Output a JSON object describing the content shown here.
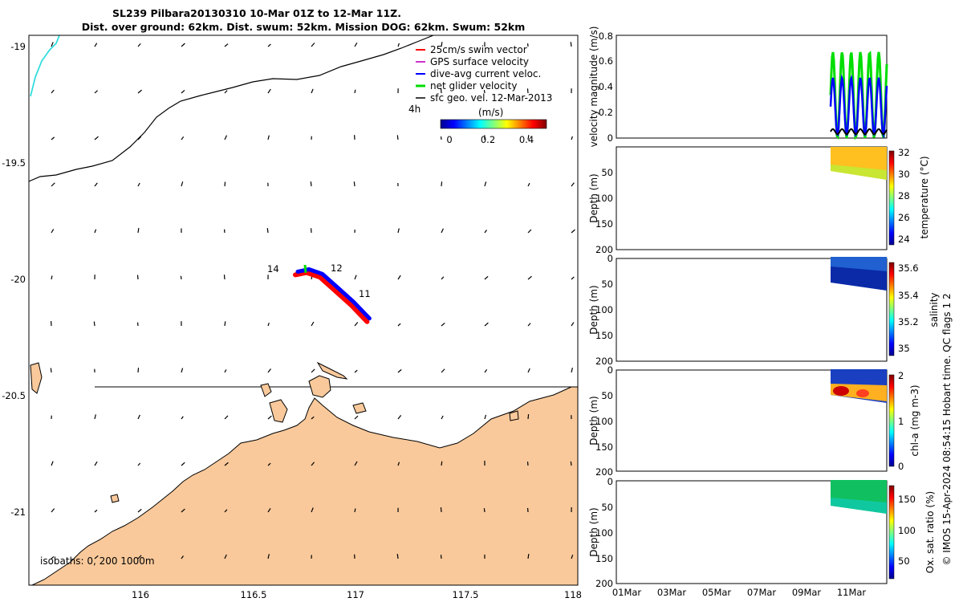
{
  "title_line1": "SL239 Pilbara20130310 10-Mar 01Z to 12-Mar 11Z.",
  "title_line2": "Dist. over ground: 62km. Dist. swum: 52km. Mission DOG: 62km. Swum: 52km",
  "map": {
    "lon_ticks": [
      "116",
      "116.5",
      "117",
      "117.5",
      "118"
    ],
    "lat_ticks": [
      "-19",
      "-19.5",
      "-20",
      "-20.5",
      "-21"
    ],
    "isobath_label": "isobaths: 0, 200  1000m",
    "legend": [
      "25cm/s swim vector",
      "GPS surface velocity",
      "dive-avg current veloc.",
      "net glider velocity",
      "sfc geo. vel. 12-Mar-2013"
    ],
    "hour_label": "4h",
    "colorbar_title": "(m/s)",
    "colorbar_ticks": [
      "0",
      "0.2",
      "0.4"
    ],
    "track_labels": [
      "14",
      "12",
      "11"
    ],
    "colors": {
      "land": "#f9c99b",
      "track_current": "#0000ff",
      "track_swim": "#ff0000",
      "net": "#00dd00",
      "coast_cyan": "#33dddd"
    }
  },
  "time_axis": {
    "ticks": [
      "01Mar",
      "03Mar",
      "05Mar",
      "07Mar",
      "09Mar",
      "11Mar"
    ]
  },
  "panels": [
    {
      "ylabel": "velocity magnitude (m/s)",
      "yticks": [
        "0",
        "0.2",
        "0.4",
        "0.6",
        "0.8"
      ]
    },
    {
      "ylabel": "Depth (m)",
      "yticks": [
        "50",
        "100",
        "150",
        "200"
      ],
      "cbar_label": "temperature (°C)",
      "cbar_ticks": [
        "32",
        "30",
        "28",
        "26",
        "24"
      ]
    },
    {
      "ylabel": "Depth (m)",
      "yticks": [
        "0",
        "50",
        "100",
        "150",
        "200"
      ],
      "cbar_label": "salinity",
      "cbar_ticks": [
        "35.6",
        "35.4",
        "35.2",
        "35"
      ]
    },
    {
      "ylabel": "Depth (m)",
      "yticks": [
        "0",
        "50",
        "100",
        "150",
        "200"
      ],
      "cbar_label": "chl-a (mg m-3)",
      "cbar_ticks": [
        "2",
        "1",
        "0"
      ]
    },
    {
      "ylabel": "Depth (m)",
      "yticks": [
        "0",
        "50",
        "100",
        "150",
        "200"
      ],
      "cbar_label": "Ox. sat. ratio (%)",
      "cbar_ticks": [
        "150",
        "100",
        "50"
      ]
    }
  ],
  "side_credit": "© IMOS 15-Apr-2024 08:54:15 Hobart time. QC flags 1  2",
  "chart_data": [
    {
      "type": "scatter",
      "title": "SL239 Pilbara20130310 10-Mar 01Z to 12-Mar 11Z.",
      "xlim": [
        115.55,
        118
      ],
      "ylim": [
        -21.3,
        -18.95
      ],
      "track_lon_lat": [
        [
          116.75,
          -19.96
        ],
        [
          116.8,
          -19.95
        ],
        [
          116.86,
          -19.97
        ],
        [
          116.93,
          -20.03
        ],
        [
          117.0,
          -20.09
        ],
        [
          117.07,
          -20.16
        ]
      ]
    },
    {
      "type": "line",
      "ylabel": "velocity magnitude (m/s)",
      "ylim": [
        0,
        0.8
      ],
      "x": [
        "01Mar",
        "11Mar"
      ],
      "series_names": [
        "net glider velocity",
        "dive-avg current veloc.",
        "sfc geo. vel."
      ],
      "green_peak": 0.67,
      "blue_peak": 0.45,
      "black_mean": 0.05
    },
    {
      "type": "heatmap",
      "variable": "temperature (°C)",
      "clim": [
        23.5,
        32
      ],
      "depth_range": [
        0,
        60
      ],
      "surface_value": 30.5,
      "bottom_value": 27
    },
    {
      "type": "heatmap",
      "variable": "salinity",
      "clim": [
        34.95,
        35.65
      ],
      "surface_value": 34.97,
      "bottom_value": 34.99
    },
    {
      "type": "heatmap",
      "variable": "chl-a (mg m-3)",
      "clim": [
        0,
        2
      ],
      "subsurface_max": 2
    },
    {
      "type": "heatmap",
      "variable": "Ox. sat. ratio (%)",
      "clim": [
        25,
        175
      ],
      "surface_value": 120,
      "bottom_value": 108
    }
  ]
}
